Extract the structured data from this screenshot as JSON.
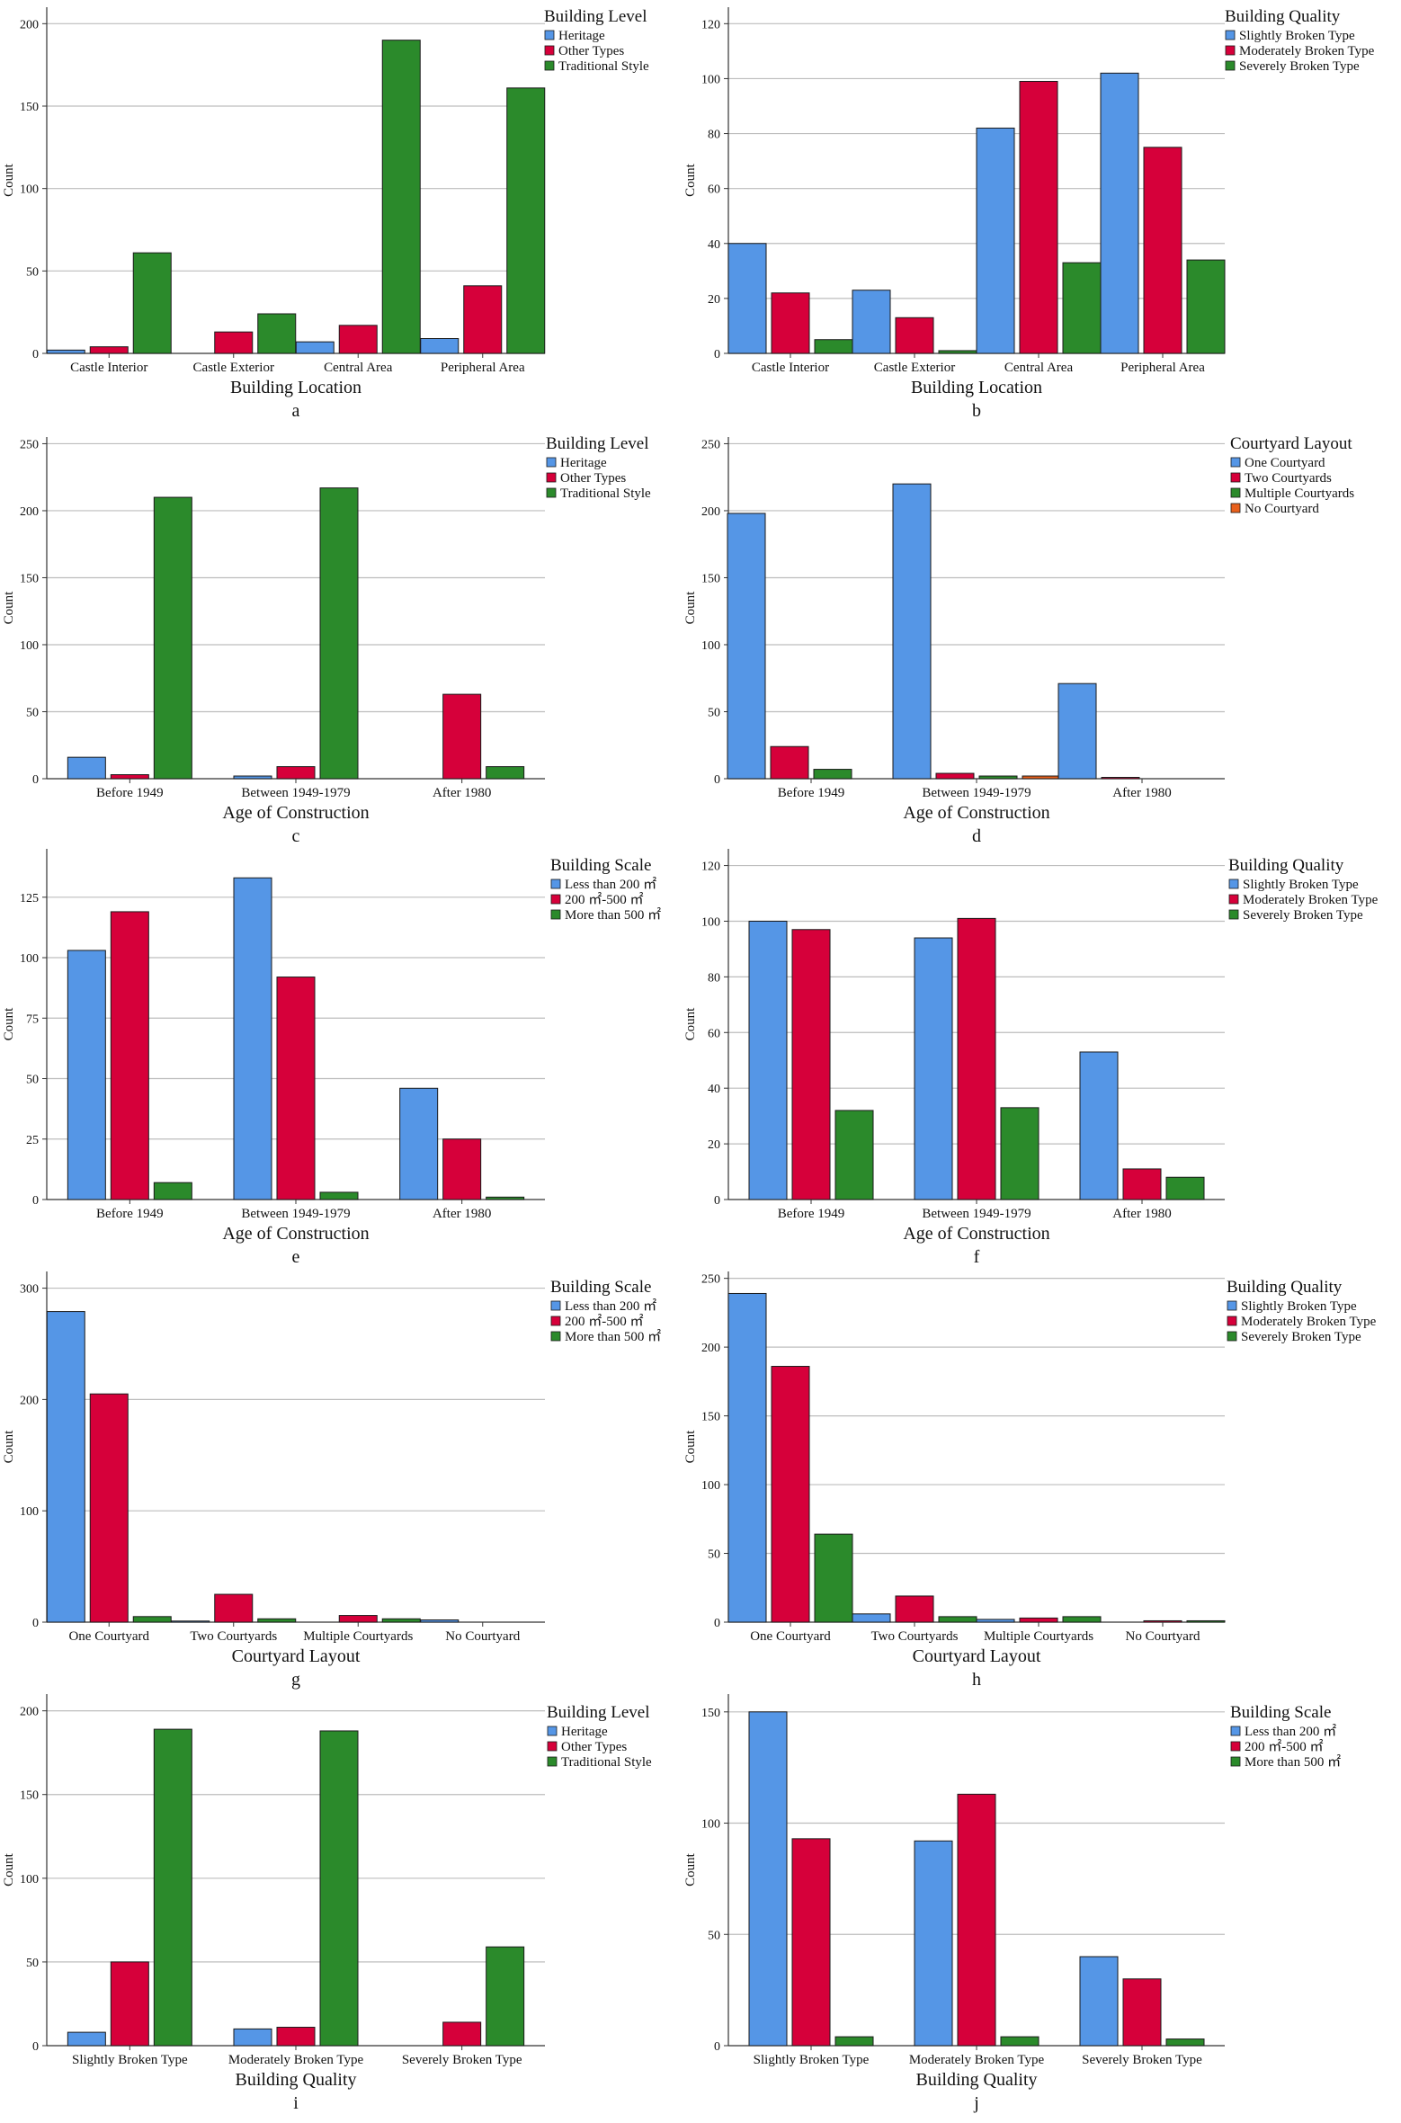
{
  "colors": {
    "blue": "#5596E6",
    "red": "#D6003A",
    "green": "#2B8A2B",
    "orange": "#E8601C",
    "grid": "#BDBDBD",
    "axis": "#333333"
  },
  "chart_data": [
    {
      "type": "bar",
      "panel": "a",
      "xlabel": "Building Location",
      "ylabel": "Count",
      "ylim": [
        0,
        210
      ],
      "yticks": [
        0,
        50,
        100,
        150,
        200
      ],
      "categories": [
        "Castle Interior",
        "Castle Exterior",
        "Central Area",
        "Peripheral Area"
      ],
      "legend_title": "Building Level",
      "series": [
        {
          "name": "Heritage",
          "color": "blue",
          "values": [
            2,
            0,
            7,
            9
          ]
        },
        {
          "name": "Other Types",
          "color": "red",
          "values": [
            4,
            13,
            17,
            41
          ]
        },
        {
          "name": "Traditional Style",
          "color": "green",
          "values": [
            61,
            24,
            190,
            161
          ]
        }
      ]
    },
    {
      "type": "bar",
      "panel": "b",
      "xlabel": "Building Location",
      "ylabel": "Count",
      "ylim": [
        0,
        126
      ],
      "yticks": [
        0,
        20,
        40,
        60,
        80,
        100,
        120
      ],
      "categories": [
        "Castle Interior",
        "Castle Exterior",
        "Central Area",
        "Peripheral Area"
      ],
      "legend_title": "Building Quality",
      "series": [
        {
          "name": "Slightly Broken Type",
          "color": "blue",
          "values": [
            40,
            23,
            82,
            102
          ]
        },
        {
          "name": "Moderately Broken Type",
          "color": "red",
          "values": [
            22,
            13,
            99,
            75
          ]
        },
        {
          "name": "Severely Broken Type",
          "color": "green",
          "values": [
            5,
            1,
            33,
            34
          ]
        }
      ]
    },
    {
      "type": "bar",
      "panel": "c",
      "xlabel": "Age of Construction",
      "ylabel": "Count",
      "ylim": [
        0,
        255
      ],
      "yticks": [
        0,
        50,
        100,
        150,
        200,
        250
      ],
      "categories": [
        "Before 1949",
        "Between 1949-1979",
        "After 1980"
      ],
      "legend_title": "Building Level",
      "series": [
        {
          "name": "Heritage",
          "color": "blue",
          "values": [
            16,
            2,
            0
          ]
        },
        {
          "name": "Other Types",
          "color": "red",
          "values": [
            3,
            9,
            63
          ]
        },
        {
          "name": "Traditional Style",
          "color": "green",
          "values": [
            210,
            217,
            9
          ]
        }
      ]
    },
    {
      "type": "bar",
      "panel": "d",
      "xlabel": "Age of Construction",
      "ylabel": "Count",
      "ylim": [
        0,
        255
      ],
      "yticks": [
        0,
        50,
        100,
        150,
        200,
        250
      ],
      "categories": [
        "Before 1949",
        "Between 1949-1979",
        "After 1980"
      ],
      "legend_title": "Courtyard Layout",
      "series": [
        {
          "name": "One Courtyard",
          "color": "blue",
          "values": [
            198,
            220,
            71
          ]
        },
        {
          "name": "Two Courtyards",
          "color": "red",
          "values": [
            24,
            4,
            1
          ]
        },
        {
          "name": "Multiple Courtyards",
          "color": "green",
          "values": [
            7,
            2,
            0
          ]
        },
        {
          "name": "No Courtyard",
          "color": "orange",
          "values": [
            0,
            2,
            0
          ]
        }
      ]
    },
    {
      "type": "bar",
      "panel": "e",
      "xlabel": "Age of Construction",
      "ylabel": "Count",
      "ylim": [
        0,
        145
      ],
      "yticks": [
        0,
        25,
        50,
        75,
        100,
        125
      ],
      "categories": [
        "Before 1949",
        "Between 1949-1979",
        "After 1980"
      ],
      "legend_title": "Building Scale",
      "series": [
        {
          "name": "Less than 200 ㎡",
          "color": "blue",
          "values": [
            103,
            133,
            46
          ]
        },
        {
          "name": "200 ㎡-500 ㎡",
          "color": "red",
          "values": [
            119,
            92,
            25
          ]
        },
        {
          "name": "More than 500 ㎡",
          "color": "green",
          "values": [
            7,
            3,
            1
          ]
        }
      ]
    },
    {
      "type": "bar",
      "panel": "f",
      "xlabel": "Age of Construction",
      "ylabel": "Count",
      "ylim": [
        0,
        126
      ],
      "yticks": [
        0,
        20,
        40,
        60,
        80,
        100,
        120
      ],
      "categories": [
        "Before 1949",
        "Between 1949-1979",
        "After 1980"
      ],
      "legend_title": "Building Quality",
      "series": [
        {
          "name": "Slightly Broken Type",
          "color": "blue",
          "values": [
            100,
            94,
            53
          ]
        },
        {
          "name": "Moderately Broken Type",
          "color": "red",
          "values": [
            97,
            101,
            11
          ]
        },
        {
          "name": "Severely Broken Type",
          "color": "green",
          "values": [
            32,
            33,
            8
          ]
        }
      ]
    },
    {
      "type": "bar",
      "panel": "g",
      "xlabel": "Courtyard Layout",
      "ylabel": "Count",
      "ylim": [
        0,
        315
      ],
      "yticks": [
        0,
        100,
        200,
        300
      ],
      "categories": [
        "One Courtyard",
        "Two Courtyards",
        "Multiple Courtyards",
        "No Courtyard"
      ],
      "legend_title": "Building Scale",
      "series": [
        {
          "name": "Less than 200 ㎡",
          "color": "blue",
          "values": [
            279,
            1,
            0,
            2
          ]
        },
        {
          "name": "200 ㎡-500 ㎡",
          "color": "red",
          "values": [
            205,
            25,
            6,
            0
          ]
        },
        {
          "name": "More than 500 ㎡",
          "color": "green",
          "values": [
            5,
            3,
            3,
            0
          ]
        }
      ]
    },
    {
      "type": "bar",
      "panel": "h",
      "xlabel": "Courtyard Layout",
      "ylabel": "Count",
      "ylim": [
        0,
        255
      ],
      "yticks": [
        0,
        50,
        100,
        150,
        200,
        250
      ],
      "categories": [
        "One Courtyard",
        "Two Courtyards",
        "Multiple Courtyards",
        "No Courtyard"
      ],
      "legend_title": "Building Quality",
      "series": [
        {
          "name": "Slightly Broken Type",
          "color": "blue",
          "values": [
            239,
            6,
            2,
            0
          ]
        },
        {
          "name": "Moderately Broken Type",
          "color": "red",
          "values": [
            186,
            19,
            3,
            1
          ]
        },
        {
          "name": "Severely Broken Type",
          "color": "green",
          "values": [
            64,
            4,
            4,
            1
          ]
        }
      ]
    },
    {
      "type": "bar",
      "panel": "i",
      "xlabel": "Building Quality",
      "ylabel": "Count",
      "ylim": [
        0,
        210
      ],
      "yticks": [
        0,
        50,
        100,
        150,
        200
      ],
      "categories": [
        "Slightly Broken Type",
        "Moderately Broken Type",
        "Severely Broken Type"
      ],
      "legend_title": "Building Level",
      "series": [
        {
          "name": "Heritage",
          "color": "blue",
          "values": [
            8,
            10,
            0
          ]
        },
        {
          "name": "Other Types",
          "color": "red",
          "values": [
            50,
            11,
            14
          ]
        },
        {
          "name": "Traditional Style",
          "color": "green",
          "values": [
            189,
            188,
            59
          ]
        }
      ]
    },
    {
      "type": "bar",
      "panel": "j",
      "xlabel": "Building Quality",
      "ylabel": "Count",
      "ylim": [
        0,
        158
      ],
      "yticks": [
        0,
        50,
        100,
        150
      ],
      "categories": [
        "Slightly Broken Type",
        "Moderately Broken Type",
        "Severely Broken Type"
      ],
      "legend_title": "Building Scale",
      "series": [
        {
          "name": "Less than 200 ㎡",
          "color": "blue",
          "values": [
            150,
            92,
            40
          ]
        },
        {
          "name": "200 ㎡-500 ㎡",
          "color": "red",
          "values": [
            93,
            113,
            30
          ]
        },
        {
          "name": "More than 500 ㎡",
          "color": "green",
          "values": [
            4,
            4,
            3
          ]
        }
      ]
    }
  ]
}
